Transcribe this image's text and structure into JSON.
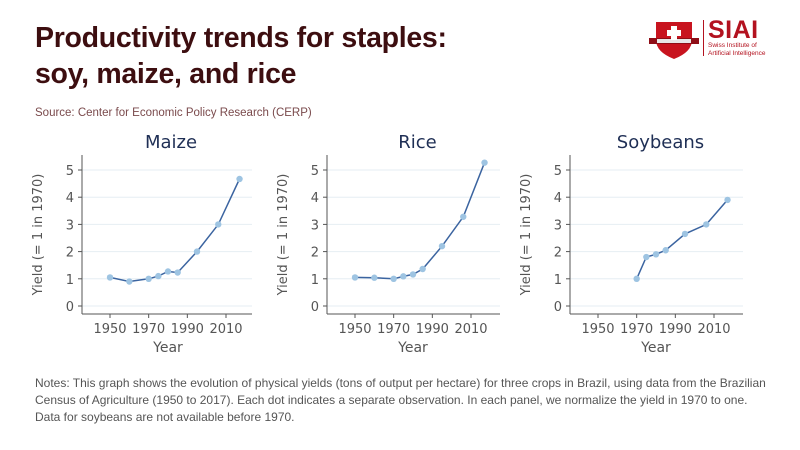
{
  "header": {
    "title_line1": "Productivity trends for staples:",
    "title_line2": "soy, maize, and rice",
    "source": "Source: Center for Economic Policy Research (CERP)"
  },
  "logo": {
    "name": "SIAI",
    "subtitle_line1": "Swiss Institute of",
    "subtitle_line2": "Artificial Intelligence"
  },
  "notes": "Notes: This graph shows the evolution of physical yields (tons of output per hectare) for three crops in Brazil, using data from the Brazilian Census of Agriculture (1950 to 2017). Each dot indicates a separate observation. In each panel, we normalize the yield in 1970 to one. Data for soybeans are not available before 1970.",
  "colors": {
    "title": "#3d0e10",
    "line": "#3b64a0",
    "marker": "#9ec4e2",
    "panel_title": "#1f2f55",
    "brand": "#b3121f"
  },
  "chart_data": [
    {
      "type": "line",
      "title": "Maize",
      "xlabel": "Year",
      "ylabel": "Yield (= 1 in 1970)",
      "xticks": [
        1950,
        1970,
        1990,
        2010
      ],
      "yticks": [
        0,
        1,
        2,
        3,
        4,
        5
      ],
      "xlim": [
        1935,
        2025
      ],
      "ylim": [
        -0.2,
        5.5
      ],
      "grid": "horizontal",
      "x": [
        1950,
        1960,
        1970,
        1975,
        1980,
        1985,
        1995,
        2006,
        2017
      ],
      "y": [
        1.05,
        0.9,
        1.0,
        1.1,
        1.27,
        1.23,
        2.0,
        3.0,
        4.67
      ]
    },
    {
      "type": "line",
      "title": "Rice",
      "xlabel": "Year",
      "ylabel": "Yield (= 1 in 1970)",
      "xticks": [
        1950,
        1970,
        1990,
        2010
      ],
      "yticks": [
        0,
        1,
        2,
        3,
        4,
        5
      ],
      "xlim": [
        1935,
        2025
      ],
      "ylim": [
        -0.2,
        5.5
      ],
      "grid": "horizontal",
      "x": [
        1950,
        1960,
        1970,
        1975,
        1980,
        1985,
        1995,
        2006,
        2017
      ],
      "y": [
        1.05,
        1.04,
        1.0,
        1.09,
        1.16,
        1.36,
        2.2,
        3.28,
        5.27
      ]
    },
    {
      "type": "line",
      "title": "Soybeans",
      "xlabel": "Year",
      "ylabel": "Yield (= 1 in 1970)",
      "xticks": [
        1950,
        1970,
        1990,
        2010
      ],
      "yticks": [
        0,
        1,
        2,
        3,
        4,
        5
      ],
      "xlim": [
        1935,
        2025
      ],
      "ylim": [
        -0.2,
        5.5
      ],
      "grid": "horizontal",
      "x": [
        1970,
        1975,
        1980,
        1985,
        1995,
        2006,
        2017
      ],
      "y": [
        1.0,
        1.8,
        1.9,
        2.05,
        2.65,
        3.0,
        3.9
      ]
    }
  ]
}
